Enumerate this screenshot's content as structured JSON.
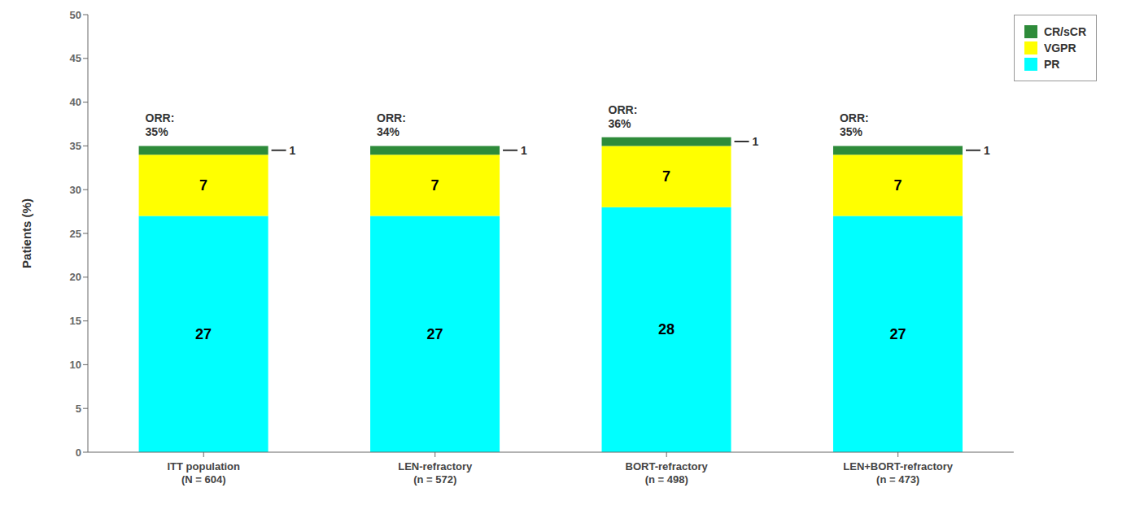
{
  "chart_data": {
    "type": "bar",
    "stacked": true,
    "categories": [
      "ITT population\n(N = 604)",
      "LEN-refractory\n(n = 572)",
      "BORT-refractory\n(n = 498)",
      "LEN+BORT-refractory\n(n = 473)"
    ],
    "series": [
      {
        "name": "PR",
        "color": "#00FFFF",
        "values": [
          27,
          27,
          28,
          27
        ]
      },
      {
        "name": "VGPR",
        "color": "#FFFF00",
        "values": [
          7,
          7,
          7,
          7
        ]
      },
      {
        "name": "CR/sCR",
        "color": "#2E8B3A",
        "values": [
          1,
          1,
          1,
          1
        ]
      }
    ],
    "annotations": [
      "ORR:\n35%",
      "ORR:\n34%",
      "ORR:\n36%",
      "ORR:\n35%"
    ],
    "ylabel": "Patients (%)",
    "ylim": [
      0,
      50
    ],
    "yticks": [
      0,
      5,
      10,
      15,
      20,
      25,
      30,
      35,
      40,
      45,
      50
    ],
    "grid": false,
    "legend": "upper right",
    "data_labels": true
  }
}
